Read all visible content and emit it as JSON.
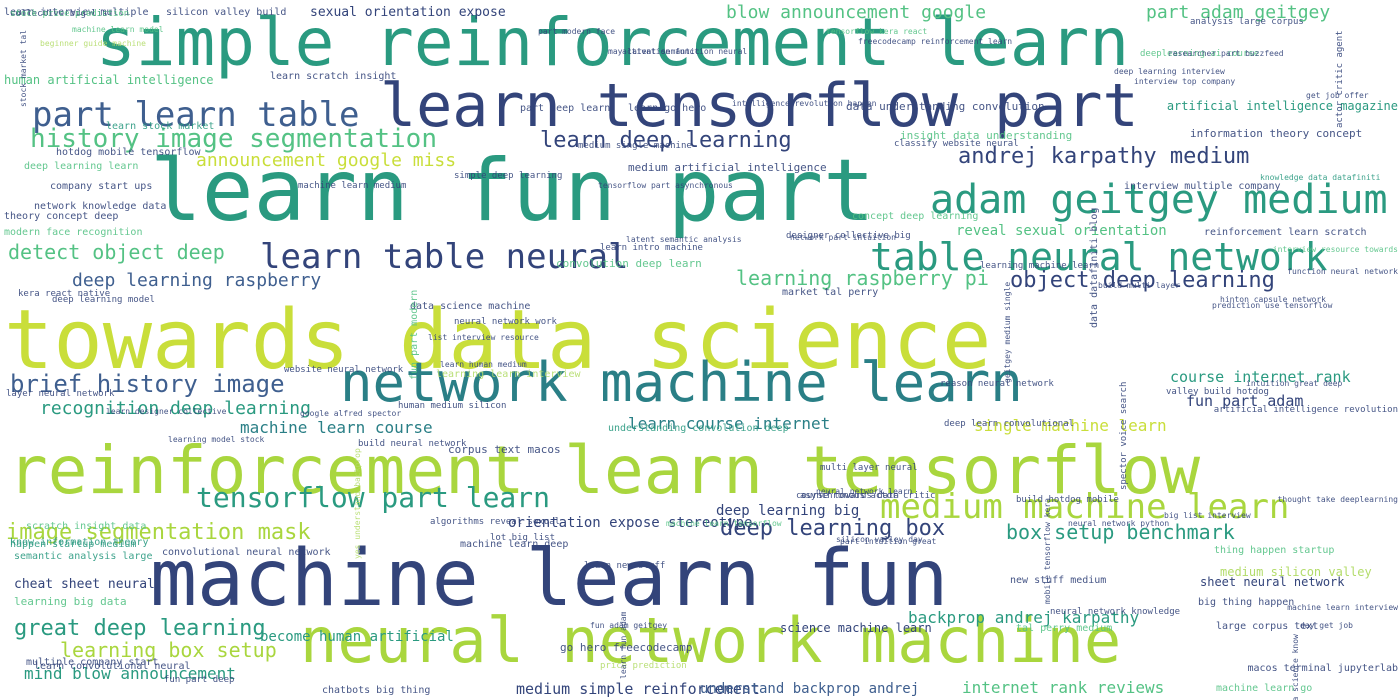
{
  "palette": {
    "navy": "#33447a",
    "blue": "#3f5f8f",
    "teal": "#2a7f86",
    "green": "#2a9a80",
    "mint": "#54c284",
    "lime": "#a9d63e",
    "yellow": "#c9de3a",
    "pale": "#b3dc6a"
  },
  "words": [
    {
      "text": "towards data science",
      "color": "yellow"
    },
    {
      "text": "reinforcement learn tensorflow",
      "color": "lime"
    },
    {
      "text": "machine learn fun",
      "color": "navy"
    },
    {
      "text": "simple reinforcement learn",
      "color": "green"
    },
    {
      "text": "learn fun part",
      "color": "green"
    },
    {
      "text": "neural network machine",
      "color": "lime"
    },
    {
      "text": "learn tensorflow part",
      "color": "navy"
    },
    {
      "text": "network machine learn",
      "color": "teal"
    },
    {
      "text": "table neural network",
      "color": "green"
    },
    {
      "text": "adam geitgey medium",
      "color": "green"
    },
    {
      "text": "part learn table",
      "color": "blue"
    },
    {
      "text": "learn table neural",
      "color": "navy"
    },
    {
      "text": "medium machine learn",
      "color": "lime"
    },
    {
      "text": "history image segmentation",
      "color": "mint"
    },
    {
      "text": "tensorflow part learn",
      "color": "green"
    },
    {
      "text": "brief history image",
      "color": "blue"
    },
    {
      "text": "andrej karpathy medium",
      "color": "navy"
    },
    {
      "text": "learn deep learning",
      "color": "navy"
    },
    {
      "text": "detect object deep",
      "color": "mint"
    },
    {
      "text": "image segmentation mask",
      "color": "lime"
    },
    {
      "text": "object deep learning",
      "color": "navy"
    },
    {
      "text": "box setup benchmark",
      "color": "green"
    },
    {
      "text": "deep learning box",
      "color": "navy"
    },
    {
      "text": "great deep learning",
      "color": "green"
    },
    {
      "text": "learning raspberry pi",
      "color": "mint"
    },
    {
      "text": "deep learning raspberry",
      "color": "blue"
    },
    {
      "text": "recognition deep learning",
      "color": "green"
    },
    {
      "text": "learning box setup",
      "color": "lime"
    },
    {
      "text": "blow announcement google",
      "color": "mint"
    },
    {
      "text": "part adam geitgey",
      "color": "mint"
    },
    {
      "text": "announcement google miss",
      "color": "yellow"
    },
    {
      "text": "machine learn course",
      "color": "teal"
    },
    {
      "text": "learn course internet",
      "color": "teal"
    },
    {
      "text": "course internet rank",
      "color": "green"
    },
    {
      "text": "fun part adam",
      "color": "navy"
    },
    {
      "text": "single machine learn",
      "color": "yellow"
    },
    {
      "text": "mind blow announcement",
      "color": "green"
    },
    {
      "text": "backprop andrej karpathy",
      "color": "green"
    },
    {
      "text": "internet rank reviews",
      "color": "mint"
    },
    {
      "text": "medium simple reinforcement",
      "color": "navy"
    },
    {
      "text": "understand backprop andrej",
      "color": "blue"
    },
    {
      "text": "orientation expose stereotype",
      "color": "navy"
    },
    {
      "text": "reveal sexual orientation",
      "color": "mint"
    },
    {
      "text": "sexual orientation expose",
      "color": "navy"
    },
    {
      "text": "medium artificial intelligence",
      "color": "navy"
    },
    {
      "text": "data understanding convolution",
      "color": "navy"
    },
    {
      "text": "artificial intelligence magazine",
      "color": "green"
    },
    {
      "text": "human artificial intelligence",
      "color": "mint"
    },
    {
      "text": "information theory concept",
      "color": "navy"
    },
    {
      "text": "insight data understanding",
      "color": "mint"
    },
    {
      "text": "learn scratch insight",
      "color": "navy"
    },
    {
      "text": "learn interview multiple",
      "color": "navy"
    },
    {
      "text": "silicon valley build",
      "color": "navy"
    },
    {
      "text": "become human artificial",
      "color": "green"
    },
    {
      "text": "science machine learn",
      "color": "navy"
    },
    {
      "text": "cheat sheet neural",
      "color": "navy"
    },
    {
      "text": "learning big data",
      "color": "mint"
    },
    {
      "text": "sheet neural network",
      "color": "navy"
    },
    {
      "text": "thing happen startup",
      "color": "mint"
    },
    {
      "text": "big thing happen",
      "color": "navy"
    },
    {
      "text": "machine learn deep",
      "color": "navy"
    },
    {
      "text": "deep learning big",
      "color": "navy"
    },
    {
      "text": "convolution deep learn",
      "color": "mint"
    },
    {
      "text": "data science machine",
      "color": "navy"
    },
    {
      "text": "learning learn interview",
      "color": "pale"
    },
    {
      "text": "learn go hero",
      "color": "navy"
    },
    {
      "text": "part deep learn",
      "color": "navy"
    },
    {
      "text": "go hero freecodecamp",
      "color": "navy"
    },
    {
      "text": "large corpus text",
      "color": "navy"
    },
    {
      "text": "corpus text macos",
      "color": "navy"
    },
    {
      "text": "know information theory",
      "color": "green"
    },
    {
      "text": "scratch insight data",
      "color": "mint"
    },
    {
      "text": "semantic analysis large",
      "color": "green"
    },
    {
      "text": "happen startup medium",
      "color": "green"
    },
    {
      "text": "convolutional neural network",
      "color": "navy"
    },
    {
      "text": "learn convolutional neural",
      "color": "navy"
    },
    {
      "text": "multiple company start",
      "color": "navy"
    },
    {
      "text": "learn stock market",
      "color": "green"
    },
    {
      "text": "theory concept deep",
      "color": "navy"
    },
    {
      "text": "modern face recognition",
      "color": "mint"
    },
    {
      "text": "network knowledge data",
      "color": "navy"
    },
    {
      "text": "company start ups",
      "color": "navy"
    },
    {
      "text": "hotdog mobile tensorflow",
      "color": "navy"
    },
    {
      "text": "deep learning learn",
      "color": "mint"
    },
    {
      "text": "interview multiple company",
      "color": "navy"
    },
    {
      "text": "reinforcement learn scratch",
      "color": "navy"
    },
    {
      "text": "learning machine learn",
      "color": "navy"
    },
    {
      "text": "neural network work",
      "color": "navy"
    },
    {
      "text": "website neural network",
      "color": "navy"
    },
    {
      "text": "human medium silicon",
      "color": "navy"
    },
    {
      "text": "valley build hotdog",
      "color": "navy"
    },
    {
      "text": "build neural network",
      "color": "navy"
    },
    {
      "text": "asynchronous actor critic",
      "color": "navy"
    },
    {
      "text": "course towards data",
      "color": "navy"
    },
    {
      "text": "neural network knowledge",
      "color": "navy"
    },
    {
      "text": "new stuff medium",
      "color": "navy"
    },
    {
      "text": "build hotdog mobile",
      "color": "navy"
    },
    {
      "text": "learn new stuff",
      "color": "navy"
    },
    {
      "text": "tal perry medium",
      "color": "mint"
    },
    {
      "text": "price prediction",
      "color": "pale"
    },
    {
      "text": "machine learn go",
      "color": "mint"
    },
    {
      "text": "market tal perry",
      "color": "navy"
    },
    {
      "text": "classify website neural",
      "color": "navy"
    },
    {
      "text": "prediction use tensorflow",
      "color": "navy"
    },
    {
      "text": "hinton capsule network",
      "color": "navy"
    },
    {
      "text": "kera react native",
      "color": "navy"
    },
    {
      "text": "layer neural network",
      "color": "navy"
    },
    {
      "text": "deep learning model",
      "color": "navy"
    },
    {
      "text": "deep learn convolutional",
      "color": "navy"
    },
    {
      "text": "understanding convolution deep",
      "color": "green"
    },
    {
      "text": "concept deep learning",
      "color": "mint"
    },
    {
      "text": "fun part modern",
      "color": "mint"
    },
    {
      "text": "medium silicon valley",
      "color": "pale"
    },
    {
      "text": "macos terminal jupyterlab",
      "color": "navy"
    },
    {
      "text": "chatbots big thing",
      "color": "navy"
    },
    {
      "text": "fun part deep",
      "color": "navy"
    },
    {
      "text": "multi layer neural",
      "color": "navy"
    },
    {
      "text": "artificial intelligence revolution",
      "color": "navy"
    },
    {
      "text": "intuition great deep",
      "color": "navy"
    },
    {
      "text": "analysis large corpus",
      "color": "navy"
    },
    {
      "text": "stock market tal",
      "color": "navy"
    },
    {
      "text": "actor critic agent",
      "color": "navy"
    },
    {
      "text": "neural network python",
      "color": "navy"
    },
    {
      "text": "data datafiniti blog",
      "color": "navy"
    },
    {
      "text": "knowledge data datafiniti",
      "color": "green"
    },
    {
      "text": "tensorflow kera react",
      "color": "mint"
    },
    {
      "text": "designer collective big",
      "color": "navy"
    },
    {
      "text": "mobile tensorflow kera",
      "color": "navy"
    },
    {
      "text": "network part intuition",
      "color": "navy"
    },
    {
      "text": "reason neural network",
      "color": "navy"
    },
    {
      "text": "part modern face",
      "color": "navy"
    },
    {
      "text": "freecodecamp reinforcement learn",
      "color": "navy"
    },
    {
      "text": "activation function neural",
      "color": "navy"
    },
    {
      "text": "may latent semantic",
      "color": "navy"
    },
    {
      "text": "machine learn medium",
      "color": "navy"
    },
    {
      "text": "simple deep learning",
      "color": "navy"
    },
    {
      "text": "medium single machine",
      "color": "navy"
    },
    {
      "text": "tensorflow part asynchronous",
      "color": "navy"
    },
    {
      "text": "neural network learn",
      "color": "navy"
    },
    {
      "text": "part intuition great",
      "color": "navy"
    },
    {
      "text": "algorithms reveal sexual",
      "color": "navy"
    },
    {
      "text": "lot big list",
      "color": "navy"
    },
    {
      "text": "big list interview",
      "color": "navy"
    },
    {
      "text": "thought take deeplearning",
      "color": "navy"
    },
    {
      "text": "google alfred spector",
      "color": "navy"
    },
    {
      "text": "learning model stock",
      "color": "navy"
    },
    {
      "text": "learn designer collective",
      "color": "navy"
    },
    {
      "text": "learn intro machine",
      "color": "navy"
    },
    {
      "text": "list interview resource",
      "color": "navy"
    },
    {
      "text": "learn human medium",
      "color": "navy"
    },
    {
      "text": "deeplearning ai course",
      "color": "mint"
    },
    {
      "text": "interview top company",
      "color": "navy"
    },
    {
      "text": "spector voice search",
      "color": "navy"
    },
    {
      "text": "geitgey medium single",
      "color": "navy"
    },
    {
      "text": "build multi layer",
      "color": "navy"
    },
    {
      "text": "intelligence revolution happen",
      "color": "navy"
    },
    {
      "text": "latent semantic analysis",
      "color": "navy"
    },
    {
      "text": "deep learning interview",
      "color": "navy"
    },
    {
      "text": "learn fun adam",
      "color": "navy"
    },
    {
      "text": "fun adam geitgey",
      "color": "navy"
    },
    {
      "text": "machine learn interview",
      "color": "navy"
    },
    {
      "text": "researcher part buzzfeed",
      "color": "navy"
    },
    {
      "text": "function neural network",
      "color": "navy"
    },
    {
      "text": "get job offer",
      "color": "navy"
    },
    {
      "text": "machine learn tensorflow",
      "color": "mint"
    },
    {
      "text": "day get job",
      "color": "navy"
    },
    {
      "text": "interview resource towards",
      "color": "mint"
    },
    {
      "text": "yes understand backprop",
      "color": "pale"
    },
    {
      "text": "machine learn model",
      "color": "mint"
    },
    {
      "text": "beginner guide machine",
      "color": "pale"
    },
    {
      "text": "silicon valley day",
      "color": "navy"
    },
    {
      "text": "data science know",
      "color": "navy"
    },
    {
      "text": "collective big list",
      "color": "navy"
    },
    {
      "text": "stock price prediction",
      "color": "mint"
    }
  ]
}
